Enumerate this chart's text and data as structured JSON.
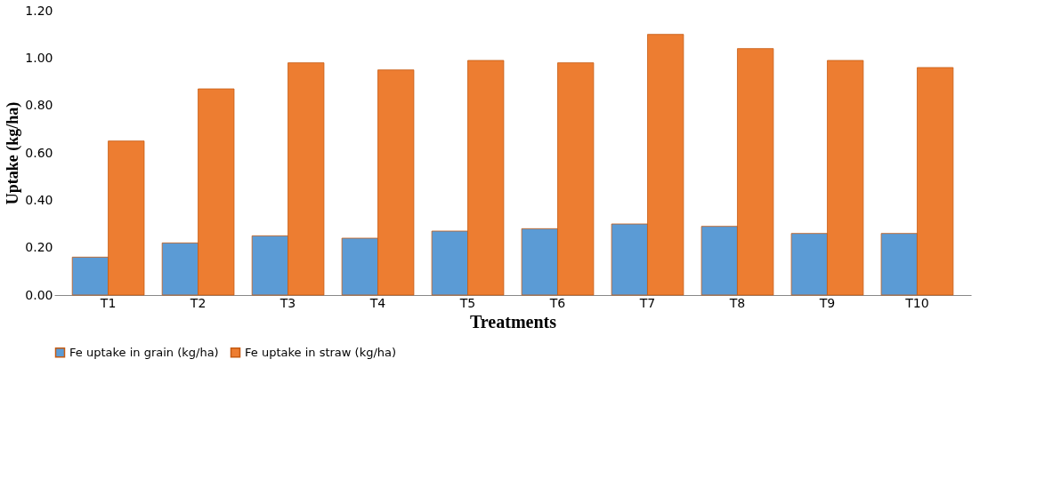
{
  "chart_data": {
    "type": "bar",
    "xlabel": "Treatments",
    "ylabel": "Uptake (kg/ha)",
    "categories": [
      "T1",
      "T2",
      "T3",
      "T4",
      "T5",
      "T6",
      "T7",
      "T8",
      "T9",
      "T10"
    ],
    "series": [
      {
        "name": "Fe uptake in grain (kg/ha)",
        "color": "#5b9bd5",
        "values": [
          0.16,
          0.22,
          0.25,
          0.24,
          0.27,
          0.28,
          0.3,
          0.29,
          0.26,
          0.26
        ]
      },
      {
        "name": "Fe uptake in straw (kg/ha)",
        "color": "#ed7d31",
        "values": [
          0.65,
          0.87,
          0.98,
          0.95,
          0.99,
          0.98,
          1.1,
          1.04,
          0.99,
          0.96
        ]
      }
    ],
    "ylim": [
      0,
      1.2
    ],
    "yticks": [
      {
        "value": 0,
        "label": "0.00"
      },
      {
        "value": 0.2,
        "label": "0.20"
      },
      {
        "value": 0.4,
        "label": "0.40"
      },
      {
        "value": 0.6,
        "label": "0.60"
      },
      {
        "value": 0.8,
        "label": "0.80"
      },
      {
        "value": 1.0,
        "label": "1.00"
      },
      {
        "value": 1.2,
        "label": "1.20"
      }
    ],
    "grid": false,
    "legend": "bottom"
  }
}
